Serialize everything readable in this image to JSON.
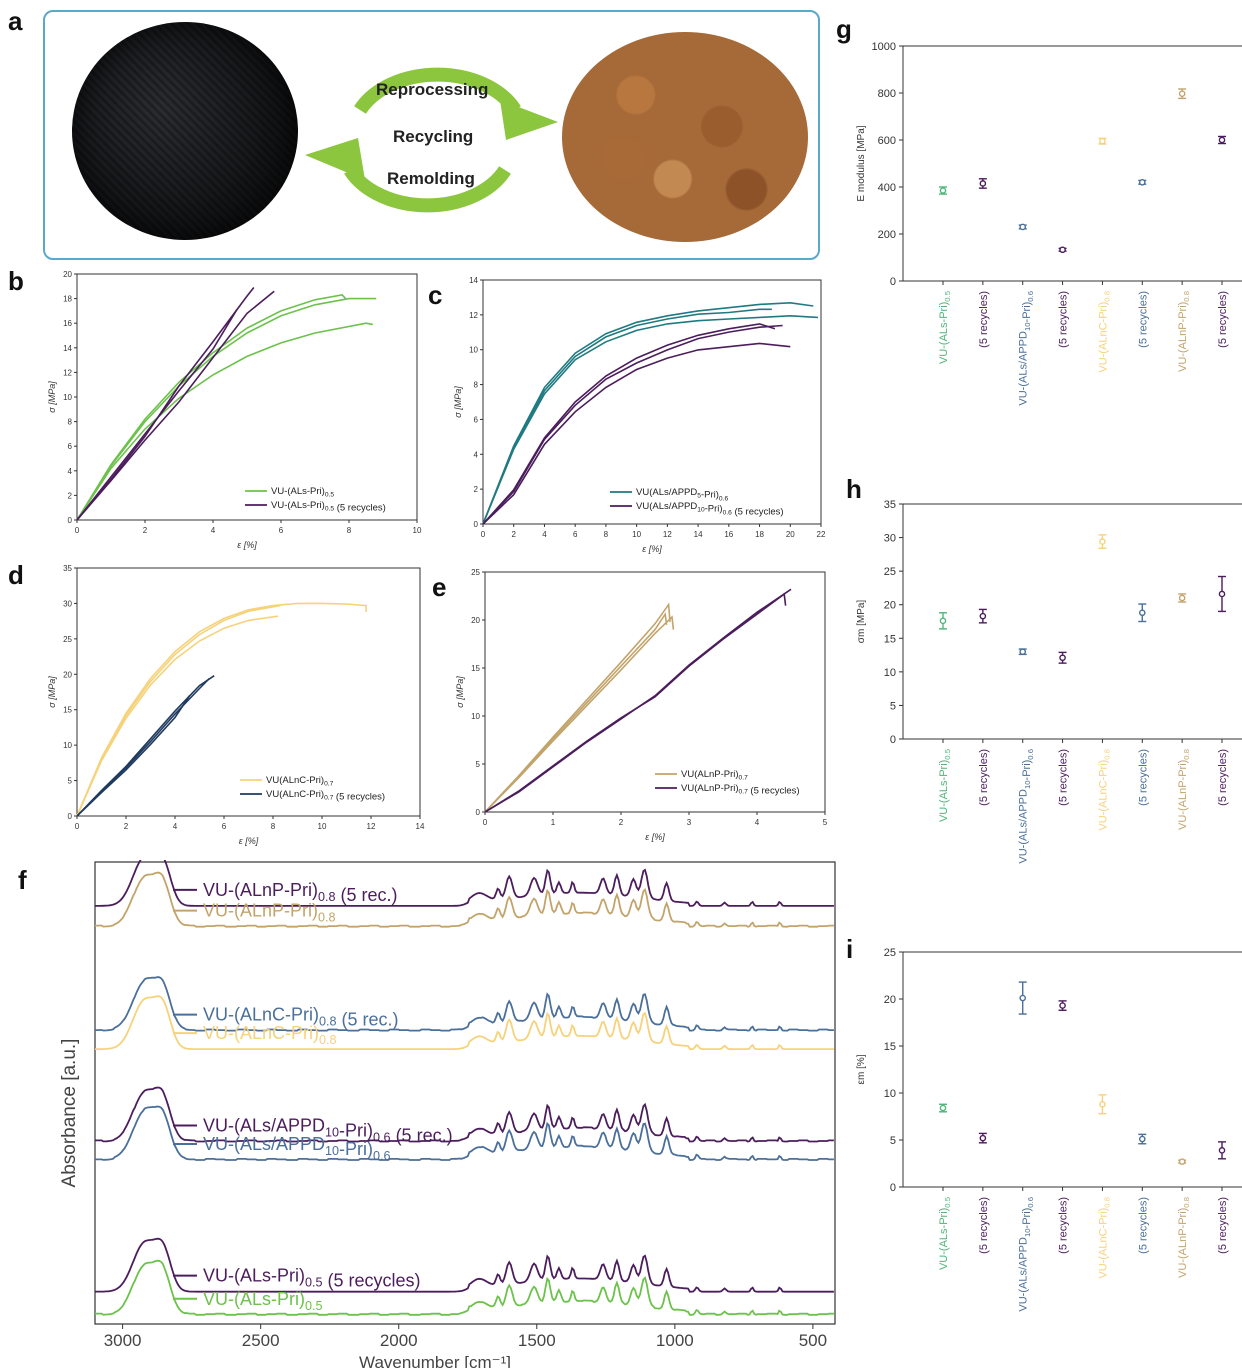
{
  "panel_letters": {
    "a": "a",
    "b": "b",
    "c": "c",
    "d": "d",
    "e": "e",
    "f": "f",
    "g": "g",
    "h": "h",
    "i": "i"
  },
  "panel_a": {
    "labels": [
      "Reprocessing",
      "Recycling",
      "Remolding"
    ],
    "arrow_color": "#8cc63f"
  },
  "colors": {
    "green": "#6cc24a",
    "purple": "#4b1d5c",
    "teal": "#1f7a82",
    "yellow": "#f6d27a",
    "navy": "#1f3a5f",
    "tan": "#c2a46b",
    "slate": "#4a6f9a",
    "green_dot": "#4fb57a",
    "border": "#5aa9c8"
  },
  "chart_data": [
    {
      "id": "b",
      "type": "line",
      "xlabel": "ε [%]",
      "ylabel": "σ [MPa]",
      "xlim": [
        0,
        10
      ],
      "ylim": [
        0,
        20
      ],
      "xticks": [
        "0",
        "2",
        "4",
        "6",
        "8",
        "10"
      ],
      "yticks": [
        "0",
        "2",
        "4",
        "6",
        "8",
        "10",
        "12",
        "14",
        "16",
        "18",
        "20"
      ],
      "legend": [
        {
          "label": "VU-(ALs-Pri)",
          "sub": "0.5",
          "suffix": "",
          "color": "#6cc24a"
        },
        {
          "label": "VU-(ALs-Pri)",
          "sub": "0.5",
          "suffix": " (5 recycles)",
          "color": "#4b1d5c"
        }
      ],
      "series": [
        {
          "color": "#6cc24a",
          "x": [
            0,
            1,
            2,
            3,
            4,
            5,
            6,
            7,
            8.5,
            8.7
          ],
          "y": [
            0,
            4.2,
            7.4,
            9.9,
            11.8,
            13.3,
            14.4,
            15.2,
            16.0,
            15.9
          ]
        },
        {
          "color": "#6cc24a",
          "x": [
            0,
            1,
            2,
            3,
            4,
            5,
            6,
            7,
            7.8,
            7.9
          ],
          "y": [
            0,
            4.5,
            8.2,
            11.2,
            13.6,
            15.6,
            17.0,
            17.9,
            18.3,
            18.0
          ]
        },
        {
          "color": "#6cc24a",
          "x": [
            0,
            1,
            2,
            3,
            4,
            5,
            6,
            7,
            8,
            8.8
          ],
          "y": [
            0,
            4.4,
            8.0,
            10.9,
            13.3,
            15.2,
            16.6,
            17.5,
            18.0,
            18.0
          ]
        },
        {
          "color": "#4b1d5c",
          "x": [
            0,
            1,
            2,
            3,
            4,
            5,
            5.2
          ],
          "y": [
            0,
            3.3,
            6.8,
            10.9,
            14.5,
            18.2,
            18.9
          ]
        },
        {
          "color": "#4b1d5c",
          "x": [
            0,
            1,
            2,
            3,
            4,
            5,
            5.8
          ],
          "y": [
            0,
            3.2,
            6.5,
            9.6,
            13.2,
            16.8,
            18.6
          ]
        },
        {
          "color": "#4b1d5c",
          "x": [
            0,
            1,
            2,
            3,
            4,
            4.7
          ],
          "y": [
            0,
            3.5,
            7.0,
            10.5,
            13.9,
            17.1
          ]
        }
      ]
    },
    {
      "id": "c",
      "type": "line",
      "xlabel": "ε [%]",
      "ylabel": "σ [MPa]",
      "xlim": [
        0,
        22
      ],
      "ylim": [
        0,
        15
      ],
      "xticks": [
        "0",
        "2",
        "4",
        "6",
        "8",
        "10",
        "12",
        "14",
        "16",
        "18",
        "20",
        "22"
      ],
      "yticks": [
        "0",
        "2",
        "4",
        "6",
        "8",
        "10",
        "12",
        "14"
      ],
      "legend": [
        {
          "label": "VU(ALs/APPD",
          "sub": "5",
          "suffix": "-Pri)",
          "sub2": "0.6",
          "suffix2": "",
          "color": "#1f7a82"
        },
        {
          "label": "VU(ALs/APPD",
          "sub": "10",
          "suffix": "-Pri)",
          "sub2": "0.6",
          "suffix2": " (5 recycles)",
          "color": "#4b1d5c"
        }
      ],
      "series": [
        {
          "color": "#1f7a82",
          "x": [
            0,
            2,
            4,
            6,
            8,
            10,
            12,
            14,
            16,
            18,
            20,
            21.5
          ],
          "y": [
            0,
            4.8,
            8.4,
            10.5,
            11.7,
            12.4,
            12.8,
            13.1,
            13.3,
            13.5,
            13.6,
            13.4
          ]
        },
        {
          "color": "#1f7a82",
          "x": [
            0,
            2,
            4,
            6,
            8,
            10,
            12,
            14,
            16,
            18,
            20,
            21.8
          ],
          "y": [
            0,
            4.6,
            8.0,
            10.1,
            11.2,
            11.9,
            12.3,
            12.5,
            12.6,
            12.7,
            12.8,
            12.7
          ]
        },
        {
          "color": "#1f7a82",
          "x": [
            0,
            2,
            4,
            6,
            8,
            10,
            12,
            14,
            16,
            18,
            18.8
          ],
          "y": [
            0,
            4.7,
            8.2,
            10.3,
            11.5,
            12.2,
            12.6,
            12.9,
            13.0,
            13.2,
            13.2
          ]
        },
        {
          "color": "#4b1d5c",
          "x": [
            0,
            2,
            4,
            6,
            8,
            10,
            12,
            14,
            16,
            18,
            19.5
          ],
          "y": [
            0,
            2.0,
            5.2,
            7.3,
            8.9,
            9.9,
            10.7,
            11.4,
            11.8,
            12.1,
            12.2
          ]
        },
        {
          "color": "#4b1d5c",
          "x": [
            0,
            2,
            4,
            6,
            8,
            10,
            12,
            14,
            16,
            18,
            20
          ],
          "y": [
            0,
            1.8,
            4.9,
            6.9,
            8.4,
            9.5,
            10.2,
            10.7,
            10.9,
            11.1,
            10.9
          ]
        },
        {
          "color": "#4b1d5c",
          "x": [
            0,
            2,
            4,
            6,
            8,
            10,
            12,
            14,
            16,
            18,
            19.0
          ],
          "y": [
            0,
            2.1,
            5.3,
            7.5,
            9.1,
            10.2,
            11.0,
            11.6,
            12.0,
            12.3,
            12.0
          ]
        }
      ]
    },
    {
      "id": "d",
      "type": "line",
      "xlabel": "ε [%]",
      "ylabel": "σ [MPa]",
      "xlim": [
        0,
        14
      ],
      "ylim": [
        0,
        35
      ],
      "xticks": [
        "0",
        "2",
        "4",
        "6",
        "8",
        "10",
        "12",
        "14"
      ],
      "yticks": [
        "0",
        "5",
        "10",
        "15",
        "20",
        "25",
        "30",
        "35"
      ],
      "legend": [
        {
          "label": "VU(ALnC-Pri)",
          "sub": "0.7",
          "suffix": "",
          "color": "#f6d27a"
        },
        {
          "label": "VU(ALnC-Pri)",
          "sub": "0.7",
          "suffix": " (5 recycles)",
          "color": "#1f3a5f"
        }
      ],
      "series": [
        {
          "color": "#f6d27a",
          "x": [
            0,
            1,
            2,
            3,
            4,
            5,
            6,
            7,
            8,
            9,
            10,
            11,
            11.8,
            11.8
          ],
          "y": [
            0,
            8.2,
            14.5,
            19.4,
            23.2,
            26.0,
            27.9,
            29.1,
            29.7,
            30.0,
            30.0,
            29.9,
            29.7,
            28.8
          ]
        },
        {
          "color": "#f6d27a",
          "x": [
            0,
            1,
            2,
            3,
            4,
            5,
            6,
            7,
            8.2
          ],
          "y": [
            0,
            7.8,
            13.8,
            18.5,
            22.1,
            24.7,
            26.5,
            27.6,
            28.2
          ]
        },
        {
          "color": "#f6d27a",
          "x": [
            0,
            1,
            2,
            3,
            4,
            5,
            6,
            7,
            8.3
          ],
          "y": [
            0,
            8.0,
            14.2,
            19.0,
            22.8,
            25.6,
            27.6,
            28.9,
            29.7
          ]
        },
        {
          "color": "#1f3a5f",
          "x": [
            0,
            1,
            2,
            3,
            4,
            5,
            5.6
          ],
          "y": [
            0,
            3.6,
            7.0,
            10.9,
            14.8,
            18.4,
            19.8
          ]
        },
        {
          "color": "#1f3a5f",
          "x": [
            0,
            1,
            2,
            3,
            4,
            4.6
          ],
          "y": [
            0,
            3.3,
            6.5,
            10.1,
            13.9,
            17.0
          ]
        },
        {
          "color": "#1f3a5f",
          "x": [
            0,
            1,
            2,
            3,
            4,
            5,
            5.4
          ],
          "y": [
            0,
            3.5,
            6.8,
            10.5,
            14.4,
            18.0,
            19.4
          ]
        }
      ]
    },
    {
      "id": "e",
      "type": "line",
      "xlabel": "ε [%]",
      "ylabel": "σ [MPa]",
      "xlim": [
        0,
        5
      ],
      "ylim": [
        0,
        25
      ],
      "xticks": [
        "0",
        "1",
        "2",
        "3",
        "4",
        "5"
      ],
      "yticks": [
        "0",
        "5",
        "10",
        "15",
        "20",
        "25"
      ],
      "legend": [
        {
          "label": "VU(ALnP-Pri)",
          "sub": "0.7",
          "suffix": "",
          "color": "#c2a46b"
        },
        {
          "label": "VU(ALnP-Pri)",
          "sub": "0.7",
          "suffix": " (5 recycles)",
          "color": "#4b1d5c"
        }
      ],
      "series": [
        {
          "color": "#c2a46b",
          "x": [
            0,
            0.5,
            1,
            1.5,
            2,
            2.5,
            2.7,
            2.72
          ],
          "y": [
            0,
            3.8,
            7.8,
            11.7,
            15.6,
            19.6,
            21.6,
            19.8
          ]
        },
        {
          "color": "#c2a46b",
          "x": [
            0,
            0.5,
            1,
            1.5,
            2,
            2.5,
            2.65,
            2.67
          ],
          "y": [
            0,
            3.7,
            7.6,
            11.4,
            15.2,
            19.0,
            20.6,
            19.5
          ]
        },
        {
          "color": "#c2a46b",
          "x": [
            0,
            0.5,
            1,
            1.5,
            2,
            2.5,
            2.75,
            2.77
          ],
          "y": [
            0,
            3.6,
            7.4,
            11.1,
            14.8,
            18.6,
            20.3,
            19.0
          ]
        },
        {
          "color": "#4b1d5c",
          "x": [
            0,
            0.5,
            1,
            1.5,
            2,
            2.5,
            3,
            3.5,
            4,
            4.4,
            4.42
          ],
          "y": [
            0,
            2.2,
            4.8,
            7.4,
            9.8,
            12.0,
            15.2,
            18.0,
            20.6,
            22.7,
            21.5
          ]
        },
        {
          "color": "#4b1d5c",
          "x": [
            0,
            0.5,
            1,
            1.5,
            2,
            2.5,
            3,
            3.5,
            4,
            4.5
          ],
          "y": [
            0,
            2.1,
            4.7,
            7.3,
            9.7,
            12.1,
            15.3,
            18.1,
            20.8,
            23.2
          ]
        }
      ]
    },
    {
      "id": "f",
      "type": "line",
      "xlabel": "Wavenumber [cm⁻¹]",
      "ylabel": "Absorbance [a.u.]",
      "xlim": [
        3100,
        420
      ],
      "ylim": [
        0,
        1
      ],
      "xticks": [
        "3000",
        "2500",
        "2000",
        "1500",
        "1000",
        "500"
      ],
      "xtick_values": [
        3000,
        2500,
        2000,
        1500,
        1000,
        500
      ],
      "traces": [
        {
          "label": "VU-(ALnP-Pri)",
          "sub": "0.8",
          "suffix": " (5 rec.)",
          "color": "#4b1d5c",
          "baseline": 0.905
        },
        {
          "label": "VU-(ALnP-Pri)",
          "sub": "0.8",
          "suffix": "",
          "color": "#c2a46b",
          "baseline": 0.86
        },
        {
          "label": "VU-(ALnC-Pri)",
          "sub": "0.8",
          "suffix": " (5 rec.)",
          "color": "#4a6f9a",
          "baseline": 0.635
        },
        {
          "label": "VU-(ALnC-Pri)",
          "sub": "0.8",
          "suffix": "",
          "color": "#f6d27a",
          "baseline": 0.595
        },
        {
          "label": "VU-(ALs/APPD",
          "sub": "10",
          "suffix": "-Pri)",
          "sub2": "0.6",
          "suffix2": " (5 rec.)",
          "color": "#4b1d5c",
          "baseline": 0.395
        },
        {
          "label": "VU-(ALs/APPD",
          "sub": "10",
          "suffix": "-Pri)",
          "sub2": "0.6",
          "suffix2": "",
          "color": "#4a6f9a",
          "baseline": 0.355
        },
        {
          "label": "VU-(ALs-Pri)",
          "sub": "0.5",
          "suffix": " (5 recycles)",
          "color": "#4b1d5c",
          "baseline": 0.07
        },
        {
          "label": "VU-(ALs-Pri)",
          "sub": "0.5",
          "suffix": "",
          "color": "#6cc24a",
          "baseline": 0.02
        }
      ]
    },
    {
      "id": "g",
      "type": "scatter",
      "ylabel": "E modulus [MPa]",
      "ylim": [
        0,
        1000
      ],
      "yticks": [
        "0",
        "200",
        "400",
        "600",
        "800",
        "1000"
      ],
      "points": [
        {
          "cat": "VU-(ALs-Pri)",
          "sub": "0.5",
          "value": 385,
          "err": 15,
          "color": "#4fb57a"
        },
        {
          "cat": "(5 recycles)",
          "value": 415,
          "err": 20,
          "color": "#4b1d5c"
        },
        {
          "cat": "VU-(ALs/APPD",
          "sub": "10",
          "tail": "-Pri)",
          "sub2": "0.6",
          "value": 230,
          "err": 8,
          "color": "#4a6f9a"
        },
        {
          "cat": "(5 recycles)",
          "value": 133,
          "err": 6,
          "color": "#4b1d5c"
        },
        {
          "cat": "VU-(ALnC-Pri)",
          "sub": "0.8",
          "value": 595,
          "err": 12,
          "color": "#f6d27a"
        },
        {
          "cat": "(5 recycles)",
          "value": 420,
          "err": 8,
          "color": "#4a6f9a"
        },
        {
          "cat": "VU-(ALnP-Pri)",
          "sub": "0.8",
          "value": 797,
          "err": 20,
          "color": "#c2a46b"
        },
        {
          "cat": "(5 recycles)",
          "value": 600,
          "err": 15,
          "color": "#4b1d5c"
        }
      ]
    },
    {
      "id": "h",
      "type": "scatter",
      "ylabel": "σm [MPa]",
      "ylim": [
        0,
        35
      ],
      "yticks": [
        "0",
        "5",
        "10",
        "15",
        "20",
        "25",
        "30",
        "35"
      ],
      "points": [
        {
          "cat": "VU-(ALs-Pri)",
          "sub": "0.5",
          "value": 17.6,
          "err": 1.2,
          "color": "#4fb57a"
        },
        {
          "cat": "(5 recycles)",
          "value": 18.3,
          "err": 1.0,
          "color": "#4b1d5c"
        },
        {
          "cat": "VU-(ALs/APPD",
          "sub": "10",
          "tail": "-Pri)",
          "sub2": "0.6",
          "value": 13.0,
          "err": 0.4,
          "color": "#4a6f9a"
        },
        {
          "cat": "(5 recycles)",
          "value": 12.1,
          "err": 0.8,
          "color": "#4b1d5c"
        },
        {
          "cat": "VU-(ALnC-Pri)",
          "sub": "0.8",
          "value": 29.4,
          "err": 1.0,
          "color": "#f6d27a"
        },
        {
          "cat": "(5 recycles)",
          "value": 18.8,
          "err": 1.3,
          "color": "#4a6f9a"
        },
        {
          "cat": "VU-(ALnP-Pri)",
          "sub": "0.8",
          "value": 21.0,
          "err": 0.6,
          "color": "#c2a46b"
        },
        {
          "cat": "(5 recycles)",
          "value": 21.6,
          "err": 2.6,
          "color": "#4b1d5c"
        }
      ]
    },
    {
      "id": "i",
      "type": "scatter",
      "ylabel": "εm [%]",
      "ylim": [
        0,
        25
      ],
      "yticks": [
        "0",
        "5",
        "10",
        "15",
        "20",
        "25"
      ],
      "points": [
        {
          "cat": "VU-(ALs-Pri)",
          "sub": "0.5",
          "value": 8.4,
          "err": 0.4,
          "color": "#4fb57a"
        },
        {
          "cat": "(5 recycles)",
          "value": 5.2,
          "err": 0.5,
          "color": "#4b1d5c"
        },
        {
          "cat": "VU-(ALs/APPD",
          "sub": "10",
          "tail": "-Pri)",
          "sub2": "0.6",
          "value": 20.1,
          "err": 1.7,
          "color": "#4a6f9a"
        },
        {
          "cat": "(5 recycles)",
          "value": 19.3,
          "err": 0.5,
          "color": "#4b1d5c"
        },
        {
          "cat": "VU-(ALnC-Pri)",
          "sub": "0.8",
          "value": 8.8,
          "err": 1.0,
          "color": "#f6d27a"
        },
        {
          "cat": "(5 recycles)",
          "value": 5.1,
          "err": 0.5,
          "color": "#4a6f9a"
        },
        {
          "cat": "VU-(ALnP-Pri)",
          "sub": "0.8",
          "value": 2.7,
          "err": 0.15,
          "color": "#c2a46b"
        },
        {
          "cat": "(5 recycles)",
          "value": 3.9,
          "err": 0.9,
          "color": "#4b1d5c"
        }
      ]
    }
  ]
}
